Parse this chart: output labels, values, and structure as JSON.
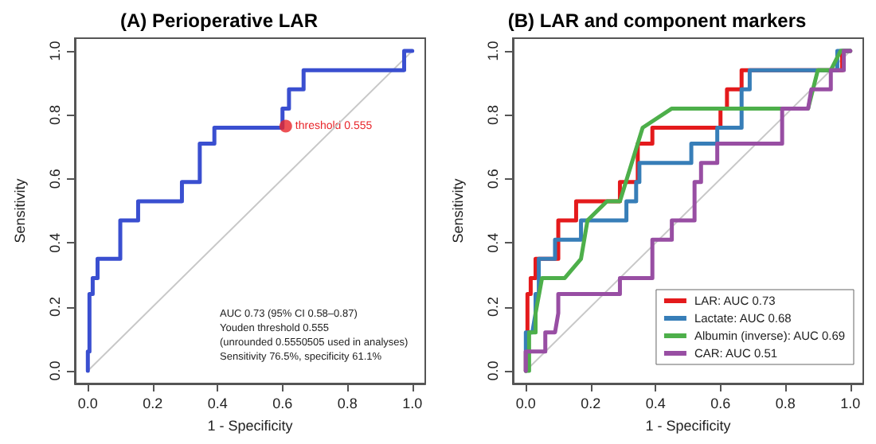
{
  "chart_data": [
    {
      "type": "line",
      "title": "(A) Perioperative LAR",
      "xlabel": "1 - Specificity",
      "ylabel": "Sensitivity",
      "xlim": [
        -0.04,
        1.04
      ],
      "ylim": [
        -0.04,
        1.04
      ],
      "xticks": [
        {
          "value": 0,
          "label": "0.0"
        },
        {
          "value": 0.2,
          "label": "0.2"
        },
        {
          "value": 0.4,
          "label": "0.4"
        },
        {
          "value": 0.6,
          "label": "0.6"
        },
        {
          "value": 0.8,
          "label": "0.8"
        },
        {
          "value": 1,
          "label": "1.0"
        }
      ],
      "yticks": [
        {
          "value": 0,
          "label": "0.0"
        },
        {
          "value": 0.2,
          "label": "0.2"
        },
        {
          "value": 0.4,
          "label": "0.4"
        },
        {
          "value": 0.6,
          "label": "0.6"
        },
        {
          "value": 0.8,
          "label": "0.8"
        },
        {
          "value": 1,
          "label": "1.0"
        }
      ],
      "grid": false,
      "legend": false,
      "marker": "none",
      "line_style": "solid",
      "series": [
        {
          "color": "#c8c8c8",
          "x": [
            0,
            1
          ],
          "values": [
            0,
            1
          ]
        },
        {
          "color": "#3a4fd0",
          "x": [
            0,
            0,
            0.005,
            0.005,
            0.015,
            0.015,
            0.03,
            0.03,
            0.1,
            0.1,
            0.155,
            0.155,
            0.29,
            0.29,
            0.345,
            0.345,
            0.39,
            0.39,
            0.6,
            0.6,
            0.62,
            0.62,
            0.665,
            0.665,
            0.975,
            0.975,
            1
          ],
          "values": [
            0,
            0.06,
            0.06,
            0.24,
            0.24,
            0.29,
            0.29,
            0.35,
            0.35,
            0.47,
            0.47,
            0.53,
            0.53,
            0.59,
            0.59,
            0.71,
            0.71,
            0.76,
            0.76,
            0.82,
            0.82,
            0.88,
            0.88,
            0.94,
            0.94,
            1,
            1
          ]
        },
        {
          "type": "scatter",
          "marker": "circle",
          "color": "#e8262b",
          "x": [
            0.61
          ],
          "values": [
            0.765
          ]
        }
      ],
      "annotations": [
        {
          "text": "threshold 0.555",
          "x": 0.61,
          "y": 0.765
        },
        "AUC 0.73 (95% CI 0.58–0.87)",
        "Youden threshold 0.555",
        "(unrounded 0.5550505 used in analyses)",
        "Sensitivity 76.5%, specificity 61.1%"
      ]
    },
    {
      "type": "line",
      "title": "(B) LAR and component markers",
      "xlabel": "1 - Specificity",
      "ylabel": "Sensitivity",
      "xlim": [
        -0.04,
        1.04
      ],
      "ylim": [
        -0.04,
        1.04
      ],
      "xticks": [
        {
          "value": 0,
          "label": "0.0"
        },
        {
          "value": 0.2,
          "label": "0.2"
        },
        {
          "value": 0.4,
          "label": "0.4"
        },
        {
          "value": 0.6,
          "label": "0.6"
        },
        {
          "value": 0.8,
          "label": "0.8"
        },
        {
          "value": 1,
          "label": "1.0"
        }
      ],
      "yticks": [
        {
          "value": 0,
          "label": "0.0"
        },
        {
          "value": 0.2,
          "label": "0.2"
        },
        {
          "value": 0.4,
          "label": "0.4"
        },
        {
          "value": 0.6,
          "label": "0.6"
        },
        {
          "value": 0.8,
          "label": "0.8"
        },
        {
          "value": 1,
          "label": "1.0"
        }
      ],
      "grid": false,
      "legend": "bottom right",
      "marker": "none",
      "line_style": "solid",
      "series": [
        {
          "color": "#c8c8c8",
          "x": [
            0,
            1
          ],
          "values": [
            0,
            1
          ]
        },
        {
          "name": "LAR: AUC 0.73",
          "color": "#e41a1c",
          "x": [
            0,
            0,
            0.005,
            0.005,
            0.015,
            0.015,
            0.03,
            0.03,
            0.1,
            0.1,
            0.155,
            0.155,
            0.29,
            0.29,
            0.345,
            0.345,
            0.39,
            0.39,
            0.6,
            0.6,
            0.62,
            0.62,
            0.665,
            0.665,
            0.975,
            0.975,
            1
          ],
          "values": [
            0,
            0.06,
            0.06,
            0.24,
            0.24,
            0.29,
            0.29,
            0.35,
            0.35,
            0.47,
            0.47,
            0.53,
            0.53,
            0.59,
            0.59,
            0.71,
            0.71,
            0.76,
            0.76,
            0.82,
            0.82,
            0.88,
            0.88,
            0.94,
            0.94,
            1,
            1
          ]
        },
        {
          "name": "Lactate: AUC 0.68",
          "color": "#377eb8",
          "x": [
            0,
            0,
            0.02,
            0.03,
            0.03,
            0.04,
            0.04,
            0.09,
            0.09,
            0.17,
            0.17,
            0.31,
            0.31,
            0.34,
            0.34,
            0.35,
            0.35,
            0.51,
            0.51,
            0.59,
            0.59,
            0.665,
            0.665,
            0.69,
            0.69,
            0.96,
            0.96,
            1
          ],
          "values": [
            0,
            0.12,
            0.12,
            0.18,
            0.24,
            0.24,
            0.35,
            0.35,
            0.41,
            0.41,
            0.47,
            0.47,
            0.53,
            0.53,
            0.59,
            0.59,
            0.65,
            0.65,
            0.71,
            0.71,
            0.76,
            0.76,
            0.88,
            0.88,
            0.94,
            0.94,
            1,
            1
          ]
        },
        {
          "name": "Albumin (inverse): AUC 0.69",
          "color": "#4daf4a",
          "x": [
            0,
            0.01,
            0.01,
            0.03,
            0.03,
            0.05,
            0.12,
            0.17,
            0.19,
            0.25,
            0.29,
            0.36,
            0.45,
            0.87,
            0.9,
            0.94,
            0.97,
            1
          ],
          "values": [
            0,
            0,
            0.12,
            0.12,
            0.18,
            0.29,
            0.29,
            0.35,
            0.47,
            0.53,
            0.53,
            0.76,
            0.82,
            0.82,
            0.94,
            0.94,
            1,
            1
          ]
        },
        {
          "name": "CAR: AUC 0.51",
          "color": "#984ea3",
          "x": [
            0,
            0,
            0.06,
            0.06,
            0.09,
            0.1,
            0.1,
            0.29,
            0.29,
            0.39,
            0.39,
            0.45,
            0.45,
            0.52,
            0.52,
            0.54,
            0.54,
            0.59,
            0.59,
            0.79,
            0.79,
            0.87,
            0.88,
            0.94,
            0.94,
            0.98,
            0.98,
            1
          ],
          "values": [
            0,
            0.06,
            0.06,
            0.12,
            0.12,
            0.18,
            0.24,
            0.24,
            0.29,
            0.29,
            0.41,
            0.41,
            0.47,
            0.47,
            0.59,
            0.59,
            0.65,
            0.65,
            0.71,
            0.71,
            0.82,
            0.82,
            0.88,
            0.88,
            0.94,
            0.94,
            1,
            1
          ]
        }
      ]
    }
  ]
}
